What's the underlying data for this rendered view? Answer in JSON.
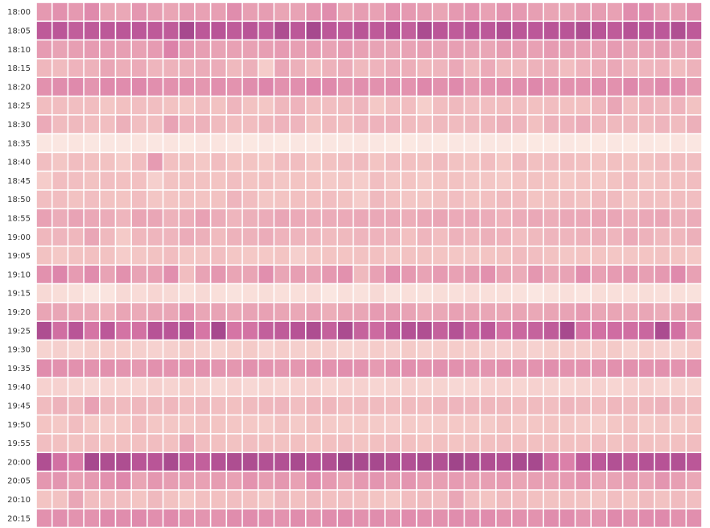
{
  "chart_data": {
    "type": "heatmap",
    "title": "",
    "xlabel": "",
    "ylabel": "",
    "y_categories": [
      "18:00",
      "18:05",
      "18:10",
      "18:15",
      "18:20",
      "18:25",
      "18:30",
      "18:35",
      "18:40",
      "18:45",
      "18:50",
      "18:55",
      "19:00",
      "19:05",
      "19:10",
      "19:15",
      "19:20",
      "19:25",
      "19:30",
      "19:35",
      "19:40",
      "19:45",
      "19:50",
      "19:55",
      "20:00",
      "20:05",
      "20:10",
      "20:15"
    ],
    "n_columns": 42,
    "value_range": [
      0,
      1
    ],
    "color_scale": [
      "#fbeae4",
      "#f3c4c3",
      "#e79fb3",
      "#d878a6",
      "#b95597",
      "#8b3780"
    ],
    "grid_line_color": "#ffffff",
    "row_levels": [
      0.42,
      0.78,
      0.4,
      0.3,
      0.48,
      0.24,
      0.26,
      0.02,
      0.22,
      0.2,
      0.22,
      0.34,
      0.28,
      0.2,
      0.4,
      0.06,
      0.36,
      0.74,
      0.14,
      0.46,
      0.12,
      0.26,
      0.18,
      0.22,
      0.8,
      0.4,
      0.22,
      0.48
    ],
    "values": [
      [
        0.43,
        0.47,
        0.43,
        0.51,
        0.37,
        0.35,
        0.44,
        0.4,
        0.37,
        0.41,
        0.39,
        0.4,
        0.49,
        0.4,
        0.41,
        0.37,
        0.38,
        0.44,
        0.49,
        0.37,
        0.41,
        0.39,
        0.47,
        0.43,
        0.41,
        0.37,
        0.43,
        0.46,
        0.39,
        0.45,
        0.43,
        0.4,
        0.37,
        0.36,
        0.41,
        0.41,
        0.39,
        0.49,
        0.5,
        0.39,
        0.4,
        0.47
      ],
      [
        0.77,
        0.79,
        0.75,
        0.77,
        0.78,
        0.79,
        0.78,
        0.77,
        0.76,
        0.88,
        0.78,
        0.8,
        0.76,
        0.8,
        0.74,
        0.85,
        0.78,
        0.88,
        0.78,
        0.76,
        0.8,
        0.77,
        0.81,
        0.74,
        0.86,
        0.79,
        0.76,
        0.79,
        0.78,
        0.84,
        0.79,
        0.78,
        0.8,
        0.8,
        0.85,
        0.8,
        0.76,
        0.81,
        0.8,
        0.78,
        0.84,
        0.77
      ],
      [
        0.42,
        0.38,
        0.4,
        0.42,
        0.42,
        0.4,
        0.39,
        0.42,
        0.55,
        0.44,
        0.4,
        0.38,
        0.39,
        0.39,
        0.4,
        0.42,
        0.4,
        0.42,
        0.38,
        0.42,
        0.39,
        0.38,
        0.36,
        0.38,
        0.4,
        0.38,
        0.4,
        0.38,
        0.36,
        0.41,
        0.4,
        0.39,
        0.42,
        0.41,
        0.39,
        0.38,
        0.42,
        0.38,
        0.39,
        0.41,
        0.38,
        0.4
      ],
      [
        0.27,
        0.25,
        0.29,
        0.3,
        0.36,
        0.32,
        0.34,
        0.28,
        0.3,
        0.31,
        0.33,
        0.33,
        0.26,
        0.31,
        0.16,
        0.36,
        0.31,
        0.25,
        0.3,
        0.33,
        0.26,
        0.29,
        0.33,
        0.32,
        0.27,
        0.28,
        0.35,
        0.26,
        0.34,
        0.26,
        0.26,
        0.3,
        0.32,
        0.24,
        0.29,
        0.32,
        0.35,
        0.28,
        0.28,
        0.29,
        0.25,
        0.3
      ],
      [
        0.47,
        0.49,
        0.51,
        0.45,
        0.51,
        0.5,
        0.52,
        0.48,
        0.47,
        0.47,
        0.44,
        0.48,
        0.46,
        0.49,
        0.53,
        0.47,
        0.48,
        0.54,
        0.51,
        0.45,
        0.48,
        0.47,
        0.48,
        0.46,
        0.52,
        0.47,
        0.51,
        0.43,
        0.46,
        0.48,
        0.48,
        0.52,
        0.46,
        0.47,
        0.47,
        0.49,
        0.47,
        0.52,
        0.45,
        0.51,
        0.5,
        0.43
      ],
      [
        0.24,
        0.24,
        0.23,
        0.24,
        0.19,
        0.22,
        0.23,
        0.23,
        0.21,
        0.19,
        0.23,
        0.21,
        0.28,
        0.21,
        0.19,
        0.27,
        0.29,
        0.24,
        0.23,
        0.25,
        0.28,
        0.18,
        0.23,
        0.24,
        0.15,
        0.24,
        0.26,
        0.23,
        0.23,
        0.24,
        0.23,
        0.22,
        0.24,
        0.22,
        0.22,
        0.27,
        0.36,
        0.24,
        0.29,
        0.26,
        0.29,
        0.21
      ],
      [
        0.34,
        0.25,
        0.26,
        0.24,
        0.23,
        0.31,
        0.23,
        0.23,
        0.38,
        0.29,
        0.3,
        0.25,
        0.24,
        0.24,
        0.27,
        0.29,
        0.28,
        0.21,
        0.25,
        0.24,
        0.28,
        0.29,
        0.29,
        0.25,
        0.23,
        0.26,
        0.25,
        0.26,
        0.27,
        0.31,
        0.28,
        0.22,
        0.3,
        0.29,
        0.33,
        0.27,
        0.26,
        0.26,
        0.25,
        0.28,
        0.25,
        0.31
      ],
      [
        0.02,
        0.02,
        0.03,
        0.02,
        0.02,
        0.02,
        0.03,
        0.02,
        0.03,
        0.01,
        0.03,
        0.03,
        0.02,
        0.01,
        0.02,
        0.01,
        0.02,
        0.02,
        0.02,
        0.02,
        0.03,
        0.02,
        0.01,
        0.01,
        0.02,
        0.01,
        0.02,
        0.02,
        0.02,
        0.02,
        0.01,
        0.01,
        0.01,
        0.02,
        0.01,
        0.01,
        0.02,
        0.01,
        0.02,
        0.01,
        0.03,
        0.02
      ],
      [
        0.23,
        0.19,
        0.24,
        0.22,
        0.21,
        0.16,
        0.24,
        0.42,
        0.22,
        0.21,
        0.18,
        0.24,
        0.2,
        0.2,
        0.18,
        0.24,
        0.24,
        0.19,
        0.21,
        0.23,
        0.25,
        0.2,
        0.23,
        0.22,
        0.21,
        0.25,
        0.21,
        0.2,
        0.24,
        0.18,
        0.26,
        0.22,
        0.23,
        0.24,
        0.22,
        0.2,
        0.22,
        0.2,
        0.21,
        0.24,
        0.24,
        0.23
      ],
      [
        0.16,
        0.24,
        0.23,
        0.21,
        0.23,
        0.22,
        0.22,
        0.14,
        0.21,
        0.21,
        0.21,
        0.2,
        0.23,
        0.2,
        0.22,
        0.19,
        0.2,
        0.2,
        0.17,
        0.19,
        0.16,
        0.23,
        0.19,
        0.2,
        0.17,
        0.2,
        0.21,
        0.19,
        0.19,
        0.17,
        0.2,
        0.21,
        0.2,
        0.18,
        0.2,
        0.18,
        0.21,
        0.24,
        0.19,
        0.21,
        0.22,
        0.24
      ],
      [
        0.23,
        0.24,
        0.21,
        0.23,
        0.21,
        0.2,
        0.24,
        0.19,
        0.2,
        0.21,
        0.2,
        0.21,
        0.28,
        0.24,
        0.19,
        0.2,
        0.22,
        0.22,
        0.23,
        0.21,
        0.16,
        0.26,
        0.22,
        0.19,
        0.19,
        0.21,
        0.23,
        0.2,
        0.22,
        0.25,
        0.24,
        0.2,
        0.21,
        0.24,
        0.21,
        0.25,
        0.25,
        0.19,
        0.23,
        0.22,
        0.24,
        0.23
      ],
      [
        0.39,
        0.33,
        0.38,
        0.35,
        0.33,
        0.28,
        0.37,
        0.36,
        0.3,
        0.32,
        0.39,
        0.33,
        0.28,
        0.31,
        0.33,
        0.36,
        0.34,
        0.33,
        0.33,
        0.34,
        0.35,
        0.35,
        0.35,
        0.32,
        0.35,
        0.37,
        0.34,
        0.35,
        0.33,
        0.29,
        0.33,
        0.35,
        0.32,
        0.35,
        0.35,
        0.37,
        0.36,
        0.32,
        0.35,
        0.37,
        0.31,
        0.33
      ],
      [
        0.27,
        0.28,
        0.27,
        0.36,
        0.26,
        0.17,
        0.27,
        0.28,
        0.28,
        0.33,
        0.31,
        0.25,
        0.3,
        0.3,
        0.33,
        0.29,
        0.28,
        0.28,
        0.25,
        0.26,
        0.28,
        0.29,
        0.28,
        0.22,
        0.28,
        0.24,
        0.3,
        0.27,
        0.31,
        0.29,
        0.23,
        0.26,
        0.28,
        0.28,
        0.3,
        0.31,
        0.28,
        0.34,
        0.3,
        0.26,
        0.27,
        0.31
      ],
      [
        0.21,
        0.18,
        0.21,
        0.22,
        0.21,
        0.16,
        0.19,
        0.21,
        0.24,
        0.19,
        0.19,
        0.23,
        0.19,
        0.18,
        0.18,
        0.2,
        0.14,
        0.19,
        0.2,
        0.2,
        0.21,
        0.22,
        0.19,
        0.21,
        0.21,
        0.2,
        0.19,
        0.19,
        0.2,
        0.21,
        0.25,
        0.23,
        0.21,
        0.19,
        0.2,
        0.2,
        0.19,
        0.19,
        0.2,
        0.21,
        0.2,
        0.18
      ],
      [
        0.47,
        0.53,
        0.42,
        0.5,
        0.38,
        0.47,
        0.38,
        0.39,
        0.48,
        0.24,
        0.38,
        0.44,
        0.37,
        0.37,
        0.48,
        0.36,
        0.4,
        0.38,
        0.43,
        0.47,
        0.26,
        0.39,
        0.48,
        0.43,
        0.38,
        0.42,
        0.39,
        0.41,
        0.47,
        0.37,
        0.33,
        0.44,
        0.35,
        0.38,
        0.48,
        0.39,
        0.42,
        0.43,
        0.4,
        0.43,
        0.51,
        0.39
      ],
      [
        0.09,
        0.07,
        0.06,
        0.02,
        0.03,
        0.09,
        0.08,
        0.11,
        0.09,
        0.06,
        0.09,
        0.06,
        0.04,
        0.06,
        0.07,
        0.06,
        0.06,
        0.08,
        0.02,
        0.06,
        0.05,
        0.09,
        0.04,
        0.06,
        0.05,
        0.07,
        0.06,
        0.08,
        0.06,
        0.06,
        0.05,
        0.02,
        0.05,
        0.06,
        0.03,
        0.07,
        0.06,
        0.06,
        0.07,
        0.06,
        0.06,
        0.05
      ],
      [
        0.37,
        0.36,
        0.34,
        0.34,
        0.29,
        0.37,
        0.34,
        0.36,
        0.36,
        0.46,
        0.36,
        0.38,
        0.35,
        0.38,
        0.39,
        0.37,
        0.35,
        0.38,
        0.32,
        0.37,
        0.36,
        0.42,
        0.41,
        0.38,
        0.34,
        0.35,
        0.39,
        0.37,
        0.36,
        0.35,
        0.37,
        0.35,
        0.37,
        0.38,
        0.42,
        0.36,
        0.37,
        0.34,
        0.36,
        0.33,
        0.37,
        0.41
      ],
      [
        0.85,
        0.65,
        0.8,
        0.62,
        0.78,
        0.63,
        0.64,
        0.81,
        0.8,
        0.82,
        0.61,
        0.88,
        0.62,
        0.63,
        0.74,
        0.76,
        0.81,
        0.85,
        0.73,
        0.86,
        0.72,
        0.68,
        0.75,
        0.82,
        0.84,
        0.73,
        0.82,
        0.69,
        0.78,
        0.63,
        0.69,
        0.72,
        0.76,
        0.88,
        0.62,
        0.64,
        0.66,
        0.65,
        0.7,
        0.86,
        0.64,
        0.43
      ],
      [
        0.12,
        0.14,
        0.12,
        0.15,
        0.16,
        0.16,
        0.14,
        0.13,
        0.14,
        0.17,
        0.14,
        0.12,
        0.15,
        0.17,
        0.13,
        0.16,
        0.14,
        0.15,
        0.14,
        0.12,
        0.13,
        0.16,
        0.14,
        0.17,
        0.14,
        0.16,
        0.16,
        0.16,
        0.14,
        0.13,
        0.14,
        0.13,
        0.15,
        0.16,
        0.15,
        0.16,
        0.17,
        0.12,
        0.16,
        0.13,
        0.12,
        0.16
      ],
      [
        0.49,
        0.47,
        0.47,
        0.46,
        0.47,
        0.45,
        0.43,
        0.47,
        0.46,
        0.46,
        0.47,
        0.45,
        0.44,
        0.47,
        0.46,
        0.44,
        0.44,
        0.47,
        0.46,
        0.48,
        0.47,
        0.42,
        0.46,
        0.48,
        0.46,
        0.48,
        0.47,
        0.45,
        0.45,
        0.47,
        0.45,
        0.46,
        0.48,
        0.46,
        0.46,
        0.45,
        0.47,
        0.47,
        0.46,
        0.47,
        0.46,
        0.46
      ],
      [
        0.13,
        0.13,
        0.12,
        0.1,
        0.11,
        0.11,
        0.11,
        0.14,
        0.12,
        0.15,
        0.12,
        0.1,
        0.13,
        0.1,
        0.12,
        0.11,
        0.13,
        0.14,
        0.11,
        0.13,
        0.13,
        0.11,
        0.12,
        0.14,
        0.12,
        0.12,
        0.1,
        0.11,
        0.13,
        0.13,
        0.11,
        0.13,
        0.12,
        0.11,
        0.12,
        0.13,
        0.11,
        0.13,
        0.14,
        0.11,
        0.12,
        0.12
      ],
      [
        0.25,
        0.3,
        0.26,
        0.39,
        0.26,
        0.25,
        0.27,
        0.26,
        0.27,
        0.24,
        0.26,
        0.23,
        0.22,
        0.25,
        0.27,
        0.28,
        0.23,
        0.27,
        0.27,
        0.24,
        0.25,
        0.25,
        0.24,
        0.25,
        0.24,
        0.27,
        0.28,
        0.27,
        0.27,
        0.26,
        0.24,
        0.25,
        0.23,
        0.28,
        0.26,
        0.24,
        0.27,
        0.25,
        0.27,
        0.3,
        0.26,
        0.24
      ],
      [
        0.2,
        0.18,
        0.24,
        0.18,
        0.16,
        0.18,
        0.24,
        0.19,
        0.19,
        0.19,
        0.21,
        0.2,
        0.19,
        0.18,
        0.17,
        0.21,
        0.17,
        0.21,
        0.17,
        0.17,
        0.18,
        0.17,
        0.16,
        0.17,
        0.16,
        0.17,
        0.18,
        0.18,
        0.17,
        0.21,
        0.17,
        0.19,
        0.2,
        0.19,
        0.17,
        0.15,
        0.19,
        0.21,
        0.17,
        0.19,
        0.17,
        0.2
      ],
      [
        0.23,
        0.22,
        0.21,
        0.23,
        0.2,
        0.22,
        0.22,
        0.24,
        0.22,
        0.36,
        0.24,
        0.22,
        0.21,
        0.23,
        0.22,
        0.21,
        0.22,
        0.2,
        0.22,
        0.23,
        0.2,
        0.22,
        0.23,
        0.22,
        0.2,
        0.22,
        0.2,
        0.21,
        0.22,
        0.23,
        0.22,
        0.22,
        0.22,
        0.22,
        0.22,
        0.23,
        0.21,
        0.24,
        0.22,
        0.21,
        0.22,
        0.24
      ],
      [
        0.84,
        0.64,
        0.57,
        0.88,
        0.85,
        0.85,
        0.8,
        0.8,
        0.87,
        0.76,
        0.74,
        0.82,
        0.85,
        0.85,
        0.83,
        0.83,
        0.87,
        0.82,
        0.84,
        0.92,
        0.87,
        0.88,
        0.84,
        0.83,
        0.87,
        0.83,
        0.91,
        0.86,
        0.84,
        0.83,
        0.87,
        0.88,
        0.67,
        0.56,
        0.76,
        0.78,
        0.83,
        0.77,
        0.82,
        0.81,
        0.83,
        0.79
      ],
      [
        0.44,
        0.45,
        0.39,
        0.43,
        0.47,
        0.52,
        0.37,
        0.44,
        0.41,
        0.4,
        0.39,
        0.41,
        0.39,
        0.46,
        0.41,
        0.44,
        0.39,
        0.51,
        0.43,
        0.37,
        0.43,
        0.45,
        0.41,
        0.45,
        0.4,
        0.4,
        0.42,
        0.39,
        0.4,
        0.42,
        0.37,
        0.4,
        0.39,
        0.42,
        0.46,
        0.36,
        0.38,
        0.4,
        0.38,
        0.45,
        0.4,
        0.35
      ],
      [
        0.2,
        0.21,
        0.36,
        0.24,
        0.24,
        0.23,
        0.2,
        0.26,
        0.21,
        0.18,
        0.22,
        0.22,
        0.23,
        0.22,
        0.19,
        0.26,
        0.22,
        0.26,
        0.22,
        0.23,
        0.22,
        0.2,
        0.18,
        0.24,
        0.25,
        0.23,
        0.36,
        0.23,
        0.2,
        0.25,
        0.24,
        0.22,
        0.21,
        0.22,
        0.21,
        0.19,
        0.23,
        0.2,
        0.25,
        0.21,
        0.25,
        0.23
      ],
      [
        0.47,
        0.48,
        0.46,
        0.46,
        0.51,
        0.49,
        0.51,
        0.48,
        0.51,
        0.46,
        0.45,
        0.46,
        0.49,
        0.5,
        0.48,
        0.46,
        0.49,
        0.47,
        0.49,
        0.51,
        0.47,
        0.49,
        0.46,
        0.5,
        0.48,
        0.47,
        0.49,
        0.48,
        0.5,
        0.47,
        0.47,
        0.46,
        0.49,
        0.5,
        0.45,
        0.45,
        0.51,
        0.46,
        0.5,
        0.51,
        0.47,
        0.48
      ]
    ]
  }
}
